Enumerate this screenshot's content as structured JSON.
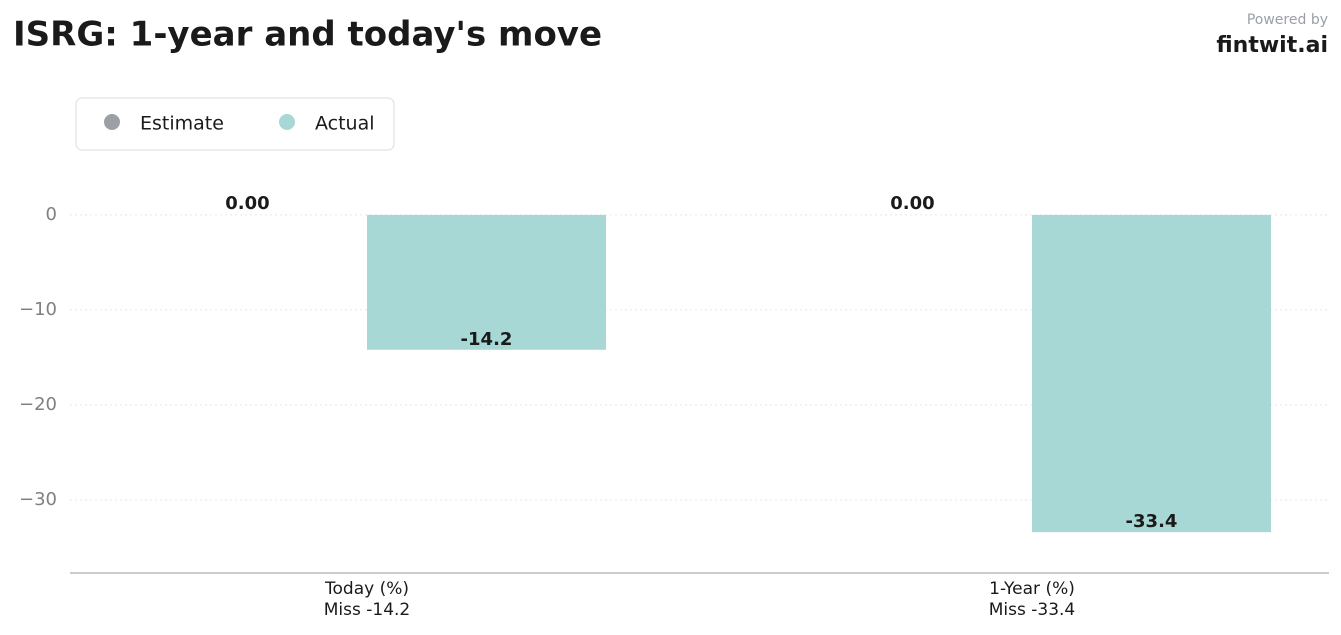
{
  "chart_data": {
    "type": "bar",
    "title": "ISRG: 1-year and today's move",
    "brand_caption": "Powered by",
    "brand": "fintwit.ai",
    "categories": [
      [
        "Today (%)",
        "Miss -14.2"
      ],
      [
        "1-Year (%)",
        "Miss -33.4"
      ]
    ],
    "series": [
      {
        "name": "Estimate",
        "color": "#9aa0a6",
        "values": [
          0,
          0
        ],
        "value_labels": [
          "0.00",
          "0.00"
        ]
      },
      {
        "name": "Actual",
        "color": "#a8d8d5",
        "values": [
          -14.2,
          -33.4
        ]
      }
    ],
    "ylim": [
      -37.7,
      4.2
    ],
    "yticks": [
      0,
      {
        "value": -10,
        "label": "−10"
      },
      {
        "value": -20,
        "label": "−20"
      },
      {
        "value": -30,
        "label": "−30"
      }
    ],
    "grid": true
  }
}
